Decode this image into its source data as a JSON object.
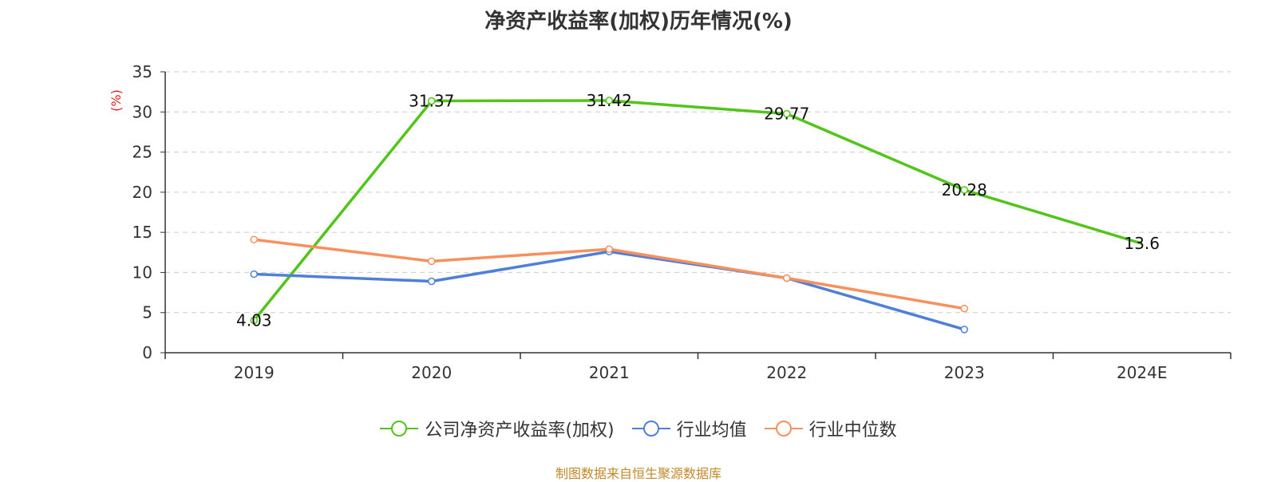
{
  "title": "净资产收益率(加权)历年情况(%)",
  "source_note": "制图数据来自恒生聚源数据库",
  "chart_data": {
    "type": "line",
    "title": "净资产收益率(加权)历年情况(%)",
    "ylabel": "(%)",
    "xlabel": "",
    "categories": [
      "2019",
      "2020",
      "2021",
      "2022",
      "2023",
      "2024E"
    ],
    "ylim": [
      0,
      35
    ],
    "yticks": [
      0,
      5,
      10,
      15,
      20,
      25,
      30,
      35
    ],
    "grid": true,
    "legend_position": "bottom-center",
    "series": [
      {
        "name": "公司净资产收益率(加权)",
        "color": "#52c41a",
        "data_labels": true,
        "values": [
          4.03,
          31.37,
          31.42,
          29.77,
          20.28,
          13.6
        ]
      },
      {
        "name": "行业均值",
        "color": "#4e7fd9",
        "data_labels": false,
        "values": [
          9.8,
          8.9,
          12.6,
          9.3,
          2.9,
          null
        ]
      },
      {
        "name": "行业中位数",
        "color": "#f7905c",
        "data_labels": false,
        "values": [
          14.1,
          11.4,
          12.9,
          9.3,
          5.5,
          null
        ]
      }
    ]
  },
  "colors": {
    "axis": "#333333",
    "grid": "#cccccc",
    "ylabel": "#e02020",
    "source": "#c08a2a"
  }
}
